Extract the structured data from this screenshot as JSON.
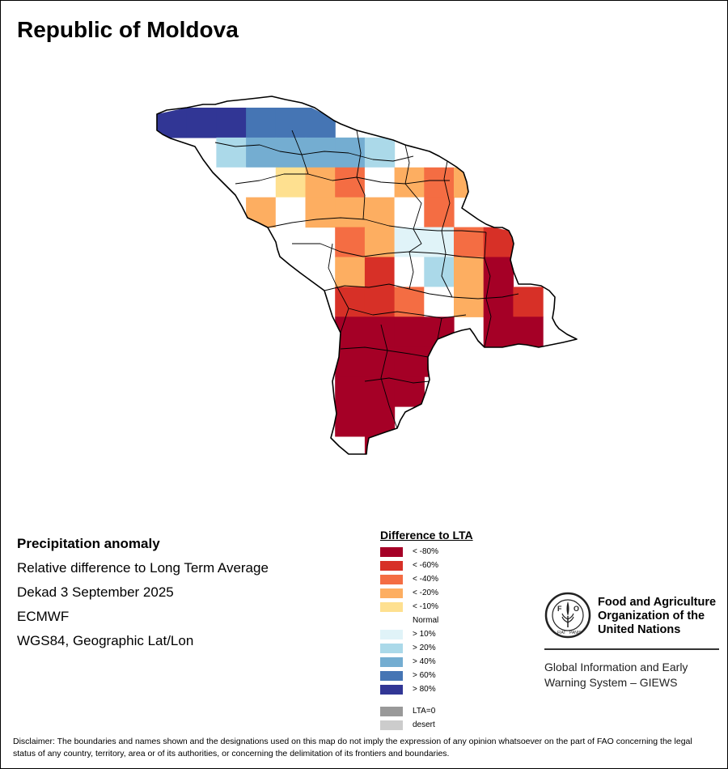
{
  "title": "Republic of Moldova",
  "info": {
    "heading": "Precipitation anomaly",
    "subtitle": "Relative difference to Long Term Average",
    "period": "Dekad 3 September 2025",
    "source": "ECMWF",
    "projection": "WGS84, Geographic Lat/Lon"
  },
  "legend": {
    "title": "Difference to LTA",
    "classes": [
      {
        "label": "< -80%",
        "color": "#a50026"
      },
      {
        "label": "< -60%",
        "color": "#d73027"
      },
      {
        "label": "< -40%",
        "color": "#f46d43"
      },
      {
        "label": "< -20%",
        "color": "#fdae61"
      },
      {
        "label": "< -10%",
        "color": "#fee090"
      },
      {
        "label": "Normal",
        "color": "#ffffff"
      },
      {
        "label": "> 10%",
        "color": "#e0f3f8"
      },
      {
        "label": "> 20%",
        "color": "#abd9e9"
      },
      {
        "label": "> 40%",
        "color": "#74add1"
      },
      {
        "label": "> 60%",
        "color": "#4575b4"
      },
      {
        "label": "> 80%",
        "color": "#313695"
      }
    ],
    "extra": [
      {
        "label": "LTA=0",
        "color": "#999999"
      },
      {
        "label": "desert",
        "color": "#cccccc"
      }
    ]
  },
  "fao": {
    "org_name": "Food and Agriculture Organization of the United Nations",
    "system_name": "Global Information and Early Warning System – GIEWS",
    "logo_text": "FAO",
    "logo_motto": "FIAT PANIS"
  },
  "disclaimer": "Disclaimer: The boundaries and names shown and the designations used on this map do not imply the expression of any opinion whatsoever on the part of FAO concerning the legal status of any country, territory, area or of its authorities, or concerning the delimitation of its frontiers and boundaries.",
  "grid": {
    "rows": [
      "222333333",
      "3RRRRRRRR",
      "4RRRR",
      "4RRRRRRR",
      "5RRRRR",
      "6RRR",
      "7RR"
    ],
    "cells": [
      {
        "row": 0,
        "col": 0,
        "cls": "> 80%"
      },
      {
        "row": 0,
        "col": 1,
        "cls": "> 80%"
      },
      {
        "row": 0,
        "col": 2,
        "cls": "> 80%"
      },
      {
        "row": 0,
        "col": 3,
        "cls": "> 60%"
      },
      {
        "row": 0,
        "col": 4,
        "cls": "> 60%"
      },
      {
        "row": 0,
        "col": 5,
        "cls": "> 60%"
      },
      {
        "row": 1,
        "col": 2,
        "cls": "> 20%"
      },
      {
        "row": 1,
        "col": 3,
        "cls": "> 40%"
      },
      {
        "row": 1,
        "col": 4,
        "cls": "> 40%"
      },
      {
        "row": 1,
        "col": 5,
        "cls": "> 40%"
      },
      {
        "row": 1,
        "col": 6,
        "cls": "> 40%"
      },
      {
        "row": 1,
        "col": 7,
        "cls": "> 20%"
      },
      {
        "row": 2,
        "col": 2,
        "cls": "Normal"
      },
      {
        "row": 2,
        "col": 3,
        "cls": "Normal"
      },
      {
        "row": 2,
        "col": 4,
        "cls": "< -10%"
      },
      {
        "row": 2,
        "col": 5,
        "cls": "< -20%"
      },
      {
        "row": 2,
        "col": 6,
        "cls": "< -40%"
      },
      {
        "row": 2,
        "col": 7,
        "cls": "Normal"
      },
      {
        "row": 2,
        "col": 8,
        "cls": "< -20%"
      },
      {
        "row": 2,
        "col": 9,
        "cls": "< -40%"
      },
      {
        "row": 2,
        "col": 10,
        "cls": "< -20%"
      },
      {
        "row": 3,
        "col": 3,
        "cls": "< -20%"
      },
      {
        "row": 3,
        "col": 4,
        "cls": "Normal"
      },
      {
        "row": 3,
        "col": 5,
        "cls": "< -20%"
      },
      {
        "row": 3,
        "col": 6,
        "cls": "< -20%"
      },
      {
        "row": 3,
        "col": 7,
        "cls": "< -20%"
      },
      {
        "row": 3,
        "col": 8,
        "cls": "Normal"
      },
      {
        "row": 3,
        "col": 9,
        "cls": "< -40%"
      },
      {
        "row": 4,
        "col": 6,
        "cls": "< -40%"
      },
      {
        "row": 4,
        "col": 7,
        "cls": "< -20%"
      },
      {
        "row": 4,
        "col": 8,
        "cls": "> 10%"
      },
      {
        "row": 4,
        "col": 9,
        "cls": "> 10%"
      },
      {
        "row": 4,
        "col": 10,
        "cls": "< -40%"
      },
      {
        "row": 4,
        "col": 11,
        "cls": "< -60%"
      },
      {
        "row": 5,
        "col": 6,
        "cls": "< -20%"
      },
      {
        "row": 5,
        "col": 7,
        "cls": "< -60%"
      },
      {
        "row": 5,
        "col": 8,
        "cls": "Normal"
      },
      {
        "row": 5,
        "col": 9,
        "cls": "> 20%"
      },
      {
        "row": 5,
        "col": 10,
        "cls": "< -20%"
      },
      {
        "row": 5,
        "col": 11,
        "cls": "< -80%"
      },
      {
        "row": 6,
        "col": 6,
        "cls": "< -60%"
      },
      {
        "row": 6,
        "col": 7,
        "cls": "< -60%"
      },
      {
        "row": 6,
        "col": 8,
        "cls": "< -40%"
      },
      {
        "row": 6,
        "col": 9,
        "cls": "Normal"
      },
      {
        "row": 6,
        "col": 10,
        "cls": "< -20%"
      },
      {
        "row": 6,
        "col": 11,
        "cls": "< -80%"
      },
      {
        "row": 6,
        "col": 12,
        "cls": "< -60%"
      },
      {
        "row": 7,
        "col": 6,
        "cls": "< -80%"
      },
      {
        "row": 7,
        "col": 7,
        "cls": "< -80%"
      },
      {
        "row": 7,
        "col": 8,
        "cls": "< -80%"
      },
      {
        "row": 7,
        "col": 9,
        "cls": "< -80%"
      },
      {
        "row": 7,
        "col": 11,
        "cls": "< -80%"
      },
      {
        "row": 7,
        "col": 12,
        "cls": "< -80%"
      },
      {
        "row": 8,
        "col": 6,
        "cls": "< -80%"
      },
      {
        "row": 8,
        "col": 7,
        "cls": "< -80%"
      },
      {
        "row": 8,
        "col": 8,
        "cls": "< -80%"
      },
      {
        "row": 8,
        "col": 9,
        "cls": "< -80%"
      },
      {
        "row": 9,
        "col": 6,
        "cls": "< -80%"
      },
      {
        "row": 9,
        "col": 7,
        "cls": "< -80%"
      },
      {
        "row": 9,
        "col": 8,
        "cls": "< -80%"
      },
      {
        "row": 10,
        "col": 6,
        "cls": "< -80%"
      },
      {
        "row": 10,
        "col": 7,
        "cls": "< -80%"
      },
      {
        "row": 11,
        "col": 7,
        "cls": "< -80%"
      }
    ]
  }
}
